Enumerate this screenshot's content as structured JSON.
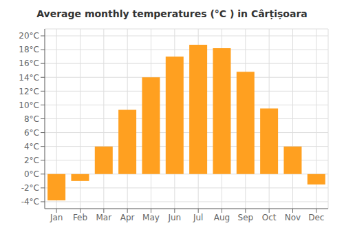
{
  "chart_data": {
    "type": "bar",
    "title": "Average monthly temperatures (°C ) in Cârțișoara",
    "categories": [
      "Jan",
      "Feb",
      "Mar",
      "Apr",
      "May",
      "Jun",
      "Jul",
      "Aug",
      "Sep",
      "Oct",
      "Nov",
      "Dec"
    ],
    "values": [
      -3.8,
      -1.0,
      4.0,
      9.3,
      14.0,
      17.0,
      18.7,
      18.2,
      14.8,
      9.5,
      4.0,
      -1.5
    ],
    "color": "#FFA020",
    "ylim": [
      -5,
      21
    ],
    "yticks": [
      {
        "value": -4,
        "label": "-4°C"
      },
      {
        "value": -2,
        "label": "-2°C"
      },
      {
        "value": 0,
        "label": "0°C"
      },
      {
        "value": 2,
        "label": "2°C"
      },
      {
        "value": 4,
        "label": "4°C"
      },
      {
        "value": 6,
        "label": "6°C"
      },
      {
        "value": 8,
        "label": "8°C"
      },
      {
        "value": 10,
        "label": "10°C"
      },
      {
        "value": 12,
        "label": "12°C"
      },
      {
        "value": 14,
        "label": "14°C"
      },
      {
        "value": 16,
        "label": "16°C"
      },
      {
        "value": 18,
        "label": "18°C"
      },
      {
        "value": 20,
        "label": "20°C"
      }
    ],
    "grid": true
  }
}
